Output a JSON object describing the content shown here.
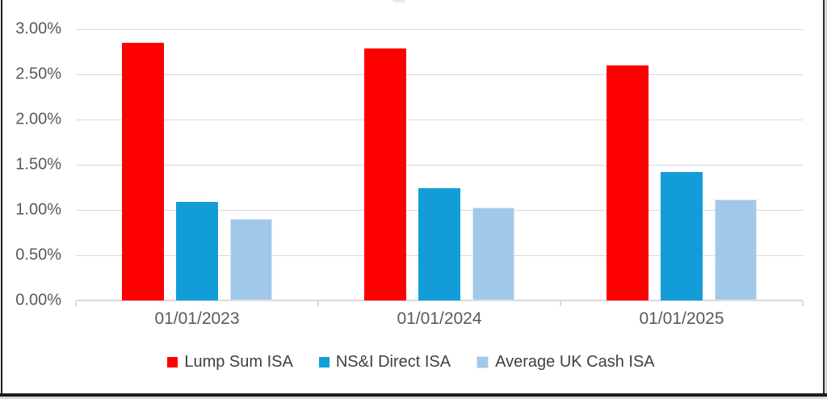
{
  "frame": {
    "border_color": "#1c1c1c",
    "outer_edge_color": "#d6d6d6",
    "background": "#ffffff"
  },
  "chart_data": {
    "type": "bar",
    "title": "",
    "categories": [
      "01/01/2023",
      "01/01/2024",
      "01/01/2025"
    ],
    "series": [
      {
        "name": "Lump Sum ISA",
        "color": "#ff0000",
        "values": [
          2.85,
          2.79,
          2.6
        ]
      },
      {
        "name": "NS&I Direct ISA",
        "color": "#129dd9",
        "values": [
          1.09,
          1.24,
          1.42
        ]
      },
      {
        "name": "Average UK Cash ISA",
        "color": "#a2c8e9",
        "border": "#d9e7f5",
        "values": [
          0.9,
          1.03,
          1.12
        ]
      }
    ],
    "ylabel": "",
    "xlabel": "",
    "ylim": [
      0,
      3.0
    ],
    "ytick_step": 0.5,
    "yticks": [
      {
        "value": 0.0,
        "label": "0.00%"
      },
      {
        "value": 0.5,
        "label": "0.50%"
      },
      {
        "value": 1.0,
        "label": "1.00%"
      },
      {
        "value": 1.5,
        "label": "1.50%"
      },
      {
        "value": 2.0,
        "label": "2.00%"
      },
      {
        "value": 2.5,
        "label": "2.50%"
      },
      {
        "value": 3.0,
        "label": "3.00%"
      }
    ],
    "grid": true,
    "gridline_color": "#d9d9d9",
    "axis_line_color": "#d9d9d9",
    "axis_label_color": "#595959",
    "legend_text_color": "#404040",
    "legend_position": "bottom"
  }
}
